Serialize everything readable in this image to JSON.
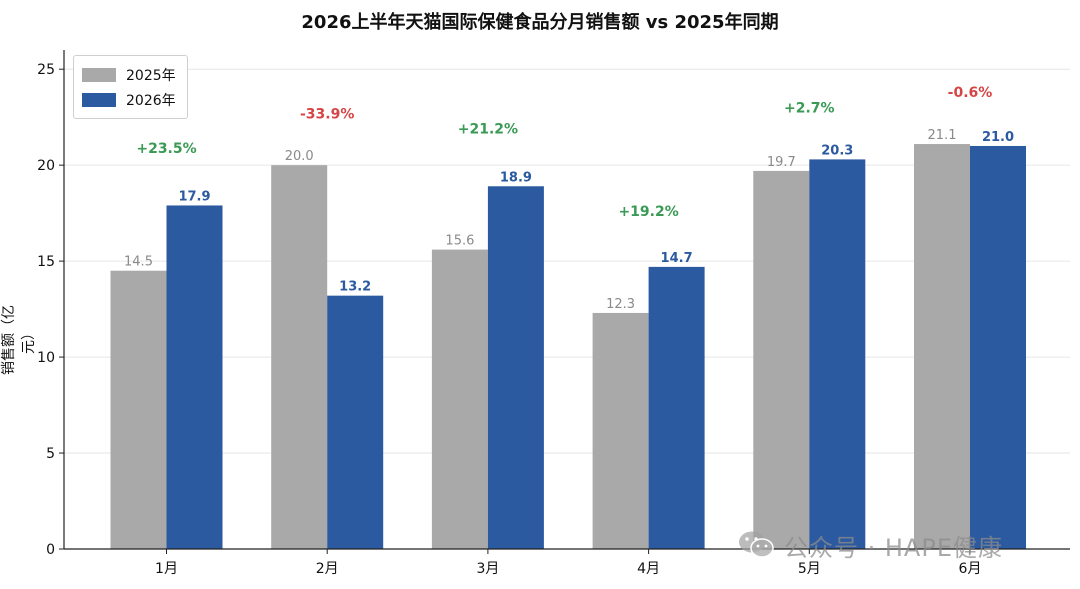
{
  "chart_data": {
    "type": "bar",
    "title": "2026上半年天猫国际保健食品分月销售额 vs 2025年同期",
    "ylabel": "销售额（亿元）",
    "xlabel": "",
    "categories": [
      "1月",
      "2月",
      "3月",
      "4月",
      "5月",
      "6月"
    ],
    "series": [
      {
        "name": "2025年",
        "color": "#a9a9a9",
        "values": [
          14.5,
          20.0,
          15.6,
          12.3,
          19.7,
          21.1
        ],
        "labels": [
          "14.5",
          "20.0",
          "15.6",
          "12.3",
          "19.7",
          "21.1"
        ]
      },
      {
        "name": "2026年",
        "color": "#2b5aa0",
        "values": [
          17.9,
          13.2,
          18.9,
          14.7,
          20.3,
          21.0
        ],
        "labels": [
          "17.9",
          "13.2",
          "18.9",
          "14.7",
          "20.3",
          "21.0"
        ]
      }
    ],
    "growth_labels": [
      "+23.5%",
      "-33.9%",
      "+21.2%",
      "+19.2%",
      "+2.7%",
      "-0.6%"
    ],
    "growth_values": [
      23.5,
      -33.9,
      21.2,
      19.2,
      2.7,
      -0.6
    ],
    "growth_label_y": [
      20.9,
      22.7,
      21.9,
      17.6,
      23.0,
      23.8
    ],
    "growth_colors": {
      "positive": "#3a9a55",
      "negative": "#d64545"
    },
    "ylim": [
      0,
      26
    ],
    "yticks": [
      0,
      5,
      10,
      15,
      20,
      25
    ],
    "grid": true,
    "legend_position": "top-left"
  },
  "watermark": {
    "text": "公众号 · HAPE健康",
    "icon": "wechat-icon"
  }
}
